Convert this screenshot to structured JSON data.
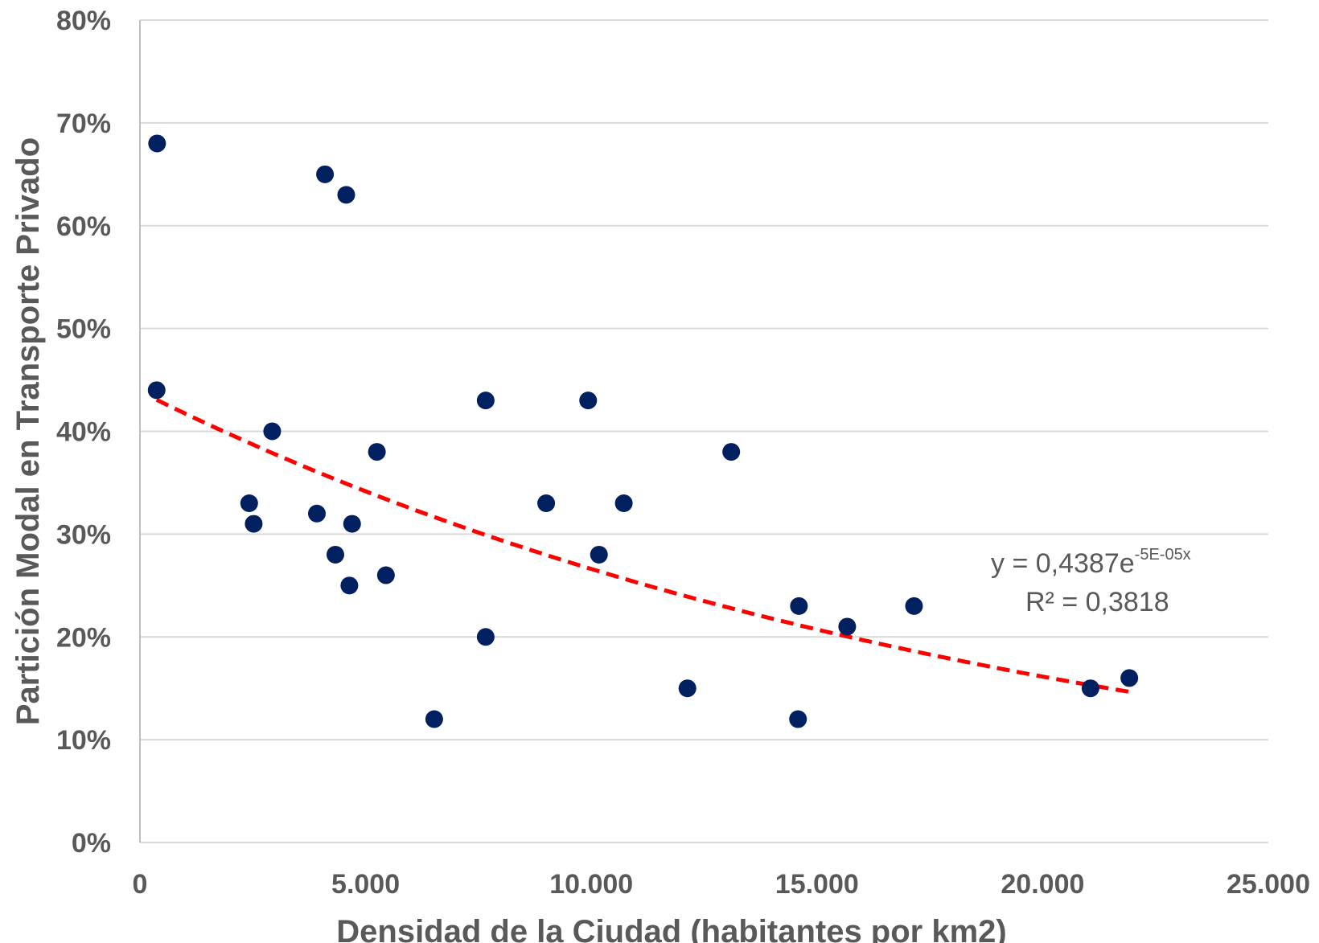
{
  "chart_data": {
    "type": "scatter",
    "title": "",
    "xlabel": "Densidad de la Ciudad (habitantes por km2)",
    "ylabel": "Partición Modal en Transporte Privado",
    "xlim": [
      0,
      25000
    ],
    "ylim": [
      0,
      0.8
    ],
    "x_ticks": [
      0,
      5000,
      10000,
      15000,
      20000,
      25000
    ],
    "x_tick_labels": [
      "0",
      "5.000",
      "10.000",
      "15.000",
      "20.000",
      "25.000"
    ],
    "y_ticks": [
      0,
      0.1,
      0.2,
      0.3,
      0.4,
      0.5,
      0.6,
      0.7,
      0.8
    ],
    "y_tick_labels": [
      "0%",
      "10%",
      "20%",
      "30%",
      "40%",
      "50%",
      "60%",
      "70%",
      "80%"
    ],
    "grid": "horizontal",
    "legend": "none",
    "colors": {
      "points": "#002060",
      "trendline": "#ff0000",
      "grid": "#d9d9d9",
      "text": "#595959"
    },
    "points": [
      {
        "x": 380,
        "y": 0.68
      },
      {
        "x": 370,
        "y": 0.44
      },
      {
        "x": 4100,
        "y": 0.65
      },
      {
        "x": 4570,
        "y": 0.63
      },
      {
        "x": 2930,
        "y": 0.4
      },
      {
        "x": 2420,
        "y": 0.33
      },
      {
        "x": 2520,
        "y": 0.31
      },
      {
        "x": 3920,
        "y": 0.32
      },
      {
        "x": 4330,
        "y": 0.28
      },
      {
        "x": 4700,
        "y": 0.31
      },
      {
        "x": 4640,
        "y": 0.25
      },
      {
        "x": 5250,
        "y": 0.38
      },
      {
        "x": 5450,
        "y": 0.26
      },
      {
        "x": 6520,
        "y": 0.12
      },
      {
        "x": 7660,
        "y": 0.43
      },
      {
        "x": 7660,
        "y": 0.2
      },
      {
        "x": 9000,
        "y": 0.33
      },
      {
        "x": 9930,
        "y": 0.43
      },
      {
        "x": 10170,
        "y": 0.28
      },
      {
        "x": 10720,
        "y": 0.33
      },
      {
        "x": 12130,
        "y": 0.15
      },
      {
        "x": 13100,
        "y": 0.38
      },
      {
        "x": 14600,
        "y": 0.23
      },
      {
        "x": 14580,
        "y": 0.12
      },
      {
        "x": 15670,
        "y": 0.21
      },
      {
        "x": 17150,
        "y": 0.23
      },
      {
        "x": 21060,
        "y": 0.15
      },
      {
        "x": 21920,
        "y": 0.16
      }
    ],
    "trendline": {
      "type": "exponential",
      "a": 0.4387,
      "b": -5e-05,
      "x_range": [
        370,
        21920
      ],
      "equation_main": "y = 0,4387e",
      "equation_exponent": "-5E-05x",
      "r_squared": "R² = 0,3818"
    }
  }
}
